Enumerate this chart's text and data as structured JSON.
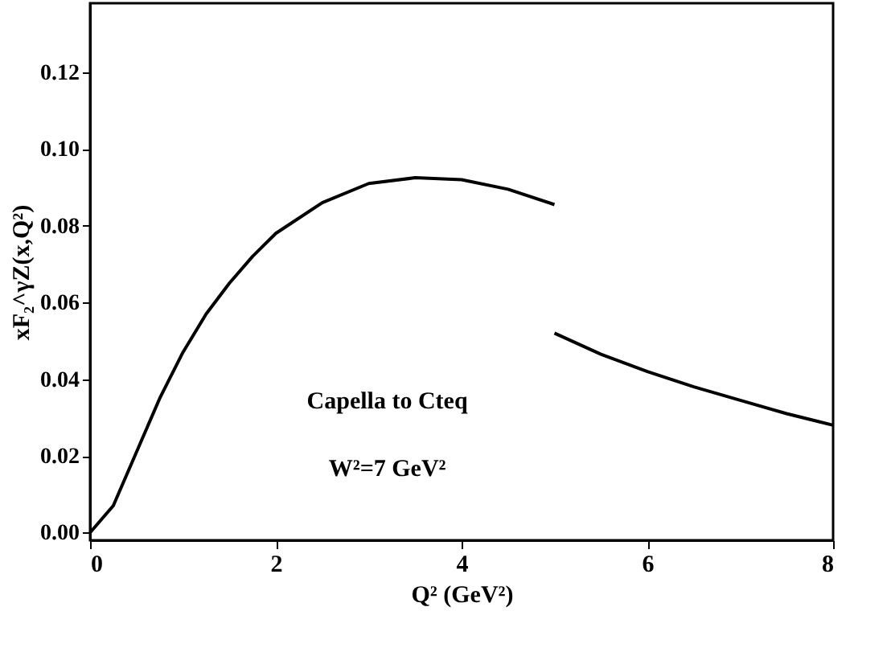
{
  "chart_data": {
    "type": "line",
    "xlabel": "Q² (GeV²)",
    "ylabel": "xF₂^γZ(x,Q²)",
    "series": [
      {
        "color": "#000000",
        "x": [
          0,
          0.25,
          0.5,
          0.75,
          1,
          1.25,
          1.5,
          1.75,
          2,
          2.5,
          3,
          3.5,
          4,
          4.5,
          5
        ],
        "values": [
          0.0,
          0.007,
          0.021,
          0.035,
          0.047,
          0.057,
          0.065,
          0.072,
          0.078,
          0.086,
          0.091,
          0.0925,
          0.092,
          0.0895,
          0.0855
        ]
      },
      {
        "color": "#000000",
        "x": [
          5,
          5.5,
          6,
          6.5,
          7,
          7.5,
          8
        ],
        "values": [
          0.052,
          0.0465,
          0.042,
          0.038,
          0.0345,
          0.031,
          0.028
        ]
      }
    ],
    "xlim": [
      0,
      8
    ],
    "xticks": [
      0,
      2,
      4,
      6,
      8
    ],
    "ylim": [
      -0.002,
      0.138
    ],
    "yticks": [
      {
        "value": 0,
        "label": "0.00"
      },
      {
        "value": 0.02,
        "label": "0.02"
      },
      {
        "value": 0.04,
        "label": "0.04"
      },
      {
        "value": 0.06,
        "label": "0.06"
      },
      {
        "value": 0.08,
        "label": "0.08"
      },
      {
        "value": 0.1,
        "label": "0.10"
      },
      {
        "value": 0.12,
        "label": "0.12"
      }
    ],
    "annotations": [
      "Capella to Cteq",
      "W²=7 GeV²"
    ],
    "grid": false,
    "marker": "none",
    "line_style": "solid"
  }
}
